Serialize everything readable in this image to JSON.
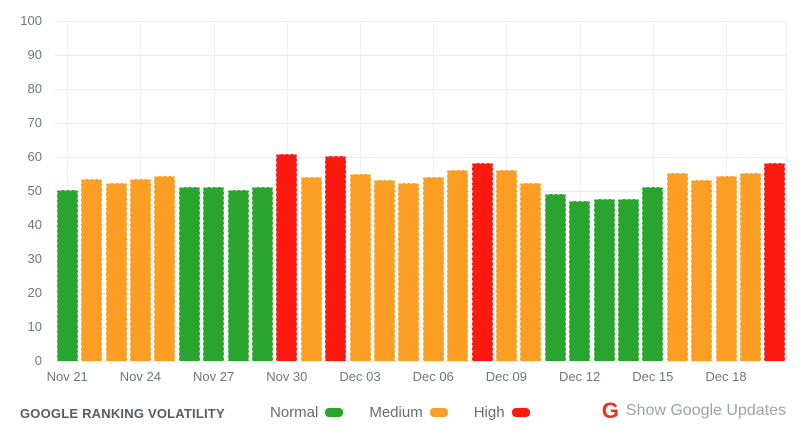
{
  "chart_data": {
    "type": "bar",
    "title": "GOOGLE RANKING VOLATILITY",
    "ylim": [
      0,
      100
    ],
    "yticks": [
      0,
      10,
      20,
      30,
      40,
      50,
      60,
      70,
      80,
      90,
      100
    ],
    "grid": true,
    "x_tick_labels": [
      "Nov 21",
      "Nov 24",
      "Nov 27",
      "Nov 30",
      "Dec 03",
      "Dec 06",
      "Dec 09",
      "Dec 12",
      "Dec 15",
      "Dec 18"
    ],
    "legend": [
      {
        "label": "Normal",
        "level": "normal",
        "color": "#29a52f"
      },
      {
        "label": "Medium",
        "level": "medium",
        "color": "#fc9e24"
      },
      {
        "label": "High",
        "level": "high",
        "color": "#fc1910"
      }
    ],
    "colors": {
      "normal": "#29a52f",
      "medium": "#fc9e24",
      "high": "#fc1910"
    },
    "points": [
      {
        "date": "Nov 21",
        "value": 50.3,
        "level": "normal"
      },
      {
        "date": "Nov 22",
        "value": 53.4,
        "level": "medium"
      },
      {
        "date": "Nov 23",
        "value": 52.5,
        "level": "medium"
      },
      {
        "date": "Nov 24",
        "value": 53.4,
        "level": "medium"
      },
      {
        "date": "Nov 25",
        "value": 54.5,
        "level": "medium"
      },
      {
        "date": "Nov 26",
        "value": 51.2,
        "level": "normal"
      },
      {
        "date": "Nov 27",
        "value": 51.2,
        "level": "normal"
      },
      {
        "date": "Nov 28",
        "value": 50.2,
        "level": "normal"
      },
      {
        "date": "Nov 29",
        "value": 51.3,
        "level": "normal"
      },
      {
        "date": "Nov 30",
        "value": 61.0,
        "level": "high"
      },
      {
        "date": "Dec 01",
        "value": 54.2,
        "level": "medium"
      },
      {
        "date": "Dec 02",
        "value": 60.2,
        "level": "high"
      },
      {
        "date": "Dec 03",
        "value": 55.0,
        "level": "medium"
      },
      {
        "date": "Dec 04",
        "value": 53.3,
        "level": "medium"
      },
      {
        "date": "Dec 05",
        "value": 52.3,
        "level": "medium"
      },
      {
        "date": "Dec 06",
        "value": 54.2,
        "level": "medium"
      },
      {
        "date": "Dec 07",
        "value": 56.2,
        "level": "medium"
      },
      {
        "date": "Dec 08",
        "value": 58.1,
        "level": "high"
      },
      {
        "date": "Dec 09",
        "value": 56.2,
        "level": "medium"
      },
      {
        "date": "Dec 10",
        "value": 52.4,
        "level": "medium"
      },
      {
        "date": "Dec 11",
        "value": 49.0,
        "level": "normal"
      },
      {
        "date": "Dec 12",
        "value": 47.0,
        "level": "normal"
      },
      {
        "date": "Dec 13",
        "value": 47.7,
        "level": "normal"
      },
      {
        "date": "Dec 14",
        "value": 47.7,
        "level": "normal"
      },
      {
        "date": "Dec 15",
        "value": 51.2,
        "level": "normal"
      },
      {
        "date": "Dec 16",
        "value": 55.2,
        "level": "medium"
      },
      {
        "date": "Dec 17",
        "value": 53.2,
        "level": "medium"
      },
      {
        "date": "Dec 18",
        "value": 54.3,
        "level": "medium"
      },
      {
        "date": "Dec 19",
        "value": 55.2,
        "level": "medium"
      },
      {
        "date": "Dec 20",
        "value": 58.2,
        "level": "high"
      }
    ]
  },
  "footer": {
    "title": "GOOGLE RANKING VOLATILITY",
    "google_icon_letter": "G",
    "updates_label": "Show Google Updates"
  }
}
